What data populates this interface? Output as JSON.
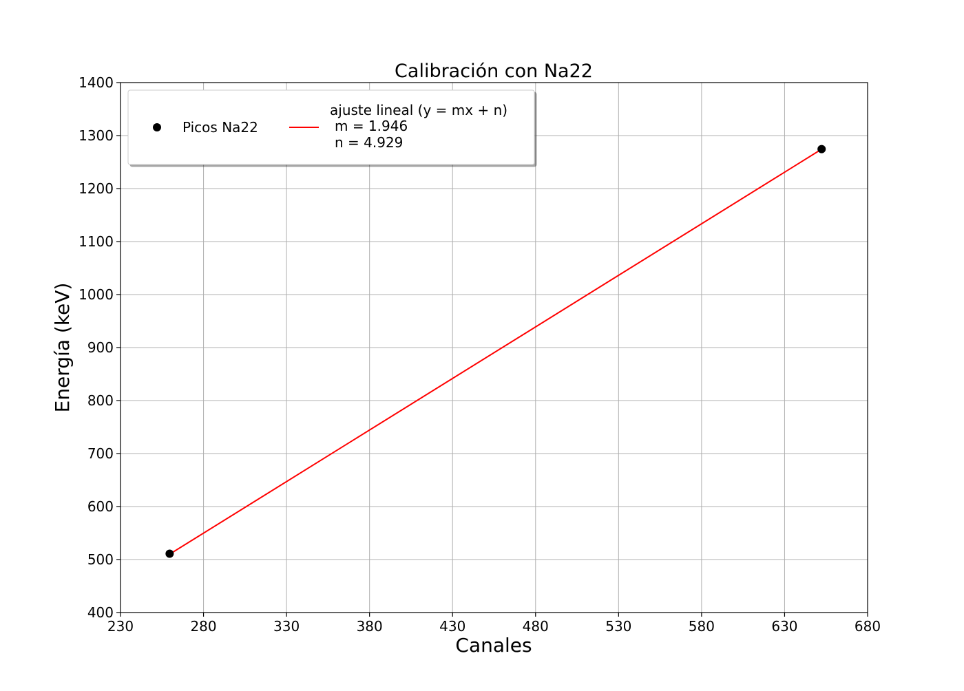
{
  "chart_data": {
    "type": "scatter",
    "title": "Calibración con Na22",
    "xlabel": "Canales",
    "ylabel": "Energía (keV)",
    "xlim": [
      230,
      680
    ],
    "ylim": [
      400,
      1400
    ],
    "xticks": [
      230,
      280,
      330,
      380,
      430,
      480,
      530,
      580,
      630,
      680
    ],
    "yticks": [
      400,
      500,
      600,
      700,
      800,
      900,
      1000,
      1100,
      1200,
      1300,
      1400
    ],
    "grid": true,
    "legend_position": "top-left",
    "series": [
      {
        "name": "Picos Na22",
        "kind": "scatter",
        "color": "#000000",
        "points": [
          {
            "x": 259.6,
            "y": 511
          },
          {
            "x": 652.3,
            "y": 1274.5
          }
        ]
      },
      {
        "name": "ajuste lineal (y = mx + n)",
        "kind": "line",
        "color": "#ff0000",
        "slope": 1.946,
        "intercept": 4.929,
        "x_range": [
          259.6,
          652.3
        ],
        "legend_lines": [
          "ajuste lineal (y = mx + n)",
          "m = 1.946",
          "n = 4.929"
        ]
      }
    ]
  }
}
